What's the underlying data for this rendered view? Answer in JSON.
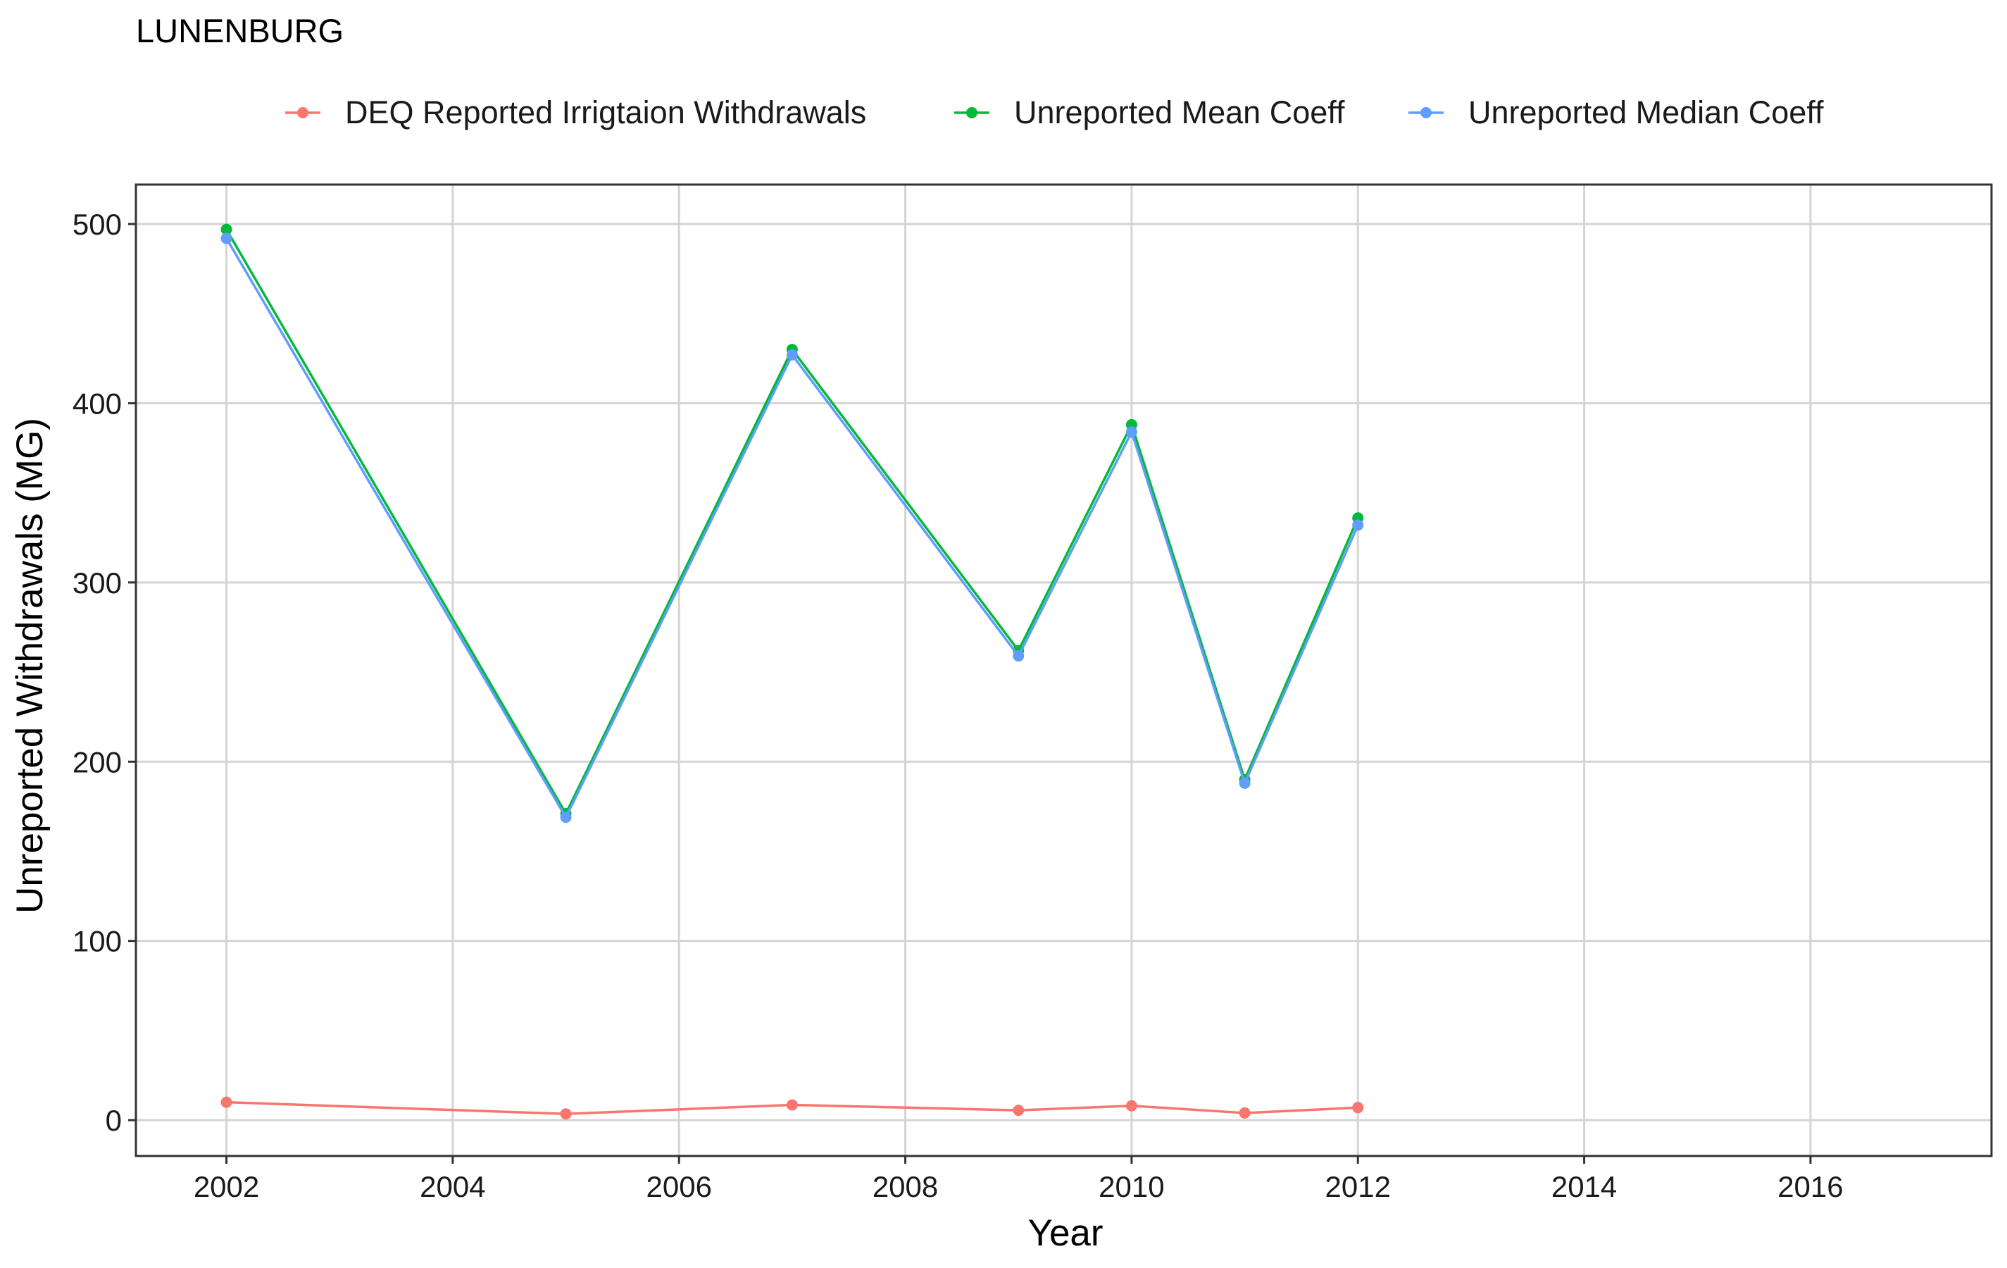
{
  "chart_data": {
    "type": "line",
    "title": "LUNENBURG",
    "xlabel": "Year",
    "ylabel": "Unreported Withdrawals (MG)",
    "xlim": [
      2001.2,
      2017.6
    ],
    "ylim": [
      -20,
      522
    ],
    "x_ticks": [
      2002,
      2004,
      2006,
      2008,
      2010,
      2012,
      2014,
      2016
    ],
    "y_ticks": [
      0,
      100,
      200,
      300,
      400,
      500
    ],
    "grid": true,
    "legend_position": "top",
    "series": [
      {
        "name": "DEQ Reported Irrigtaion Withdrawals",
        "color": "#F8766D",
        "x": [
          2002,
          2005,
          2007,
          2009,
          2010,
          2011,
          2012
        ],
        "y": [
          10,
          3.5,
          8.5,
          5.5,
          8,
          4,
          7
        ]
      },
      {
        "name": "Unreported Mean Coeff",
        "color": "#00BA38",
        "x": [
          2002,
          2005,
          2007,
          2009,
          2010,
          2011,
          2012
        ],
        "y": [
          497,
          171,
          430,
          262,
          388,
          190,
          336
        ]
      },
      {
        "name": "Unreported Median Coeff",
        "color": "#619CFF",
        "x": [
          2002,
          2005,
          2007,
          2009,
          2010,
          2011,
          2012
        ],
        "y": [
          492,
          169,
          427,
          259,
          384,
          188,
          332
        ]
      }
    ]
  }
}
